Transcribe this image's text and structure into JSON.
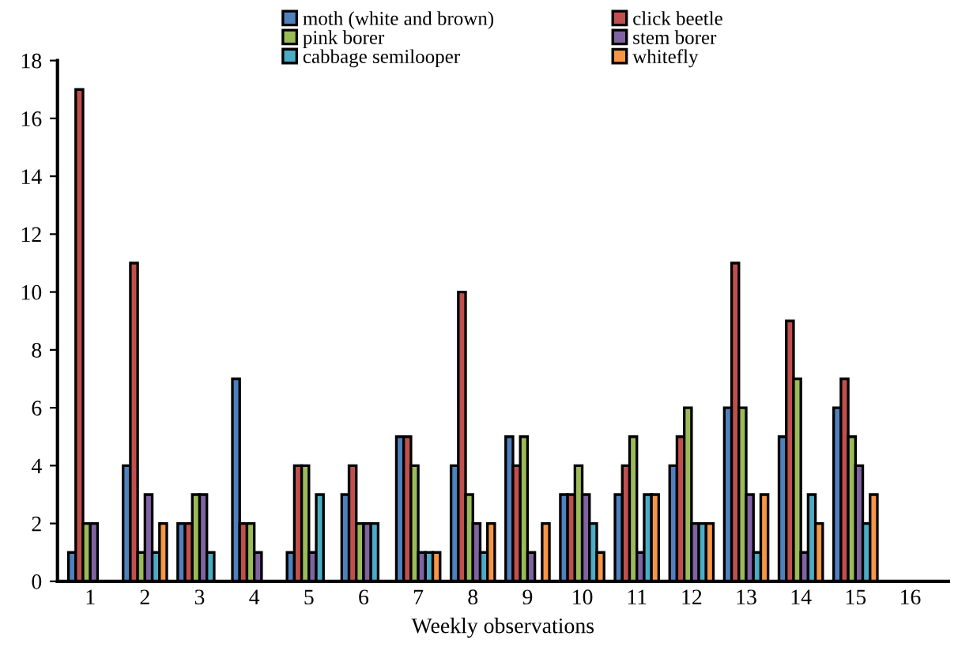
{
  "chart_data": {
    "type": "bar",
    "xlabel": "Weekly observations",
    "categories": [
      "1",
      "2",
      "3",
      "4",
      "5",
      "6",
      "7",
      "8",
      "9",
      "10",
      "11",
      "12",
      "13",
      "14",
      "15",
      "16"
    ],
    "series": [
      {
        "name": "moth (white and brown)",
        "color": "#4f81bd",
        "values": [
          1,
          4,
          2,
          7,
          1,
          3,
          5,
          4,
          5,
          3,
          3,
          4,
          6,
          5,
          6,
          null
        ]
      },
      {
        "name": "click beetle",
        "color": "#c0504d",
        "values": [
          17,
          11,
          2,
          2,
          4,
          4,
          5,
          10,
          4,
          3,
          4,
          5,
          11,
          9,
          7,
          null
        ]
      },
      {
        "name": "pink borer",
        "color": "#9bbb59",
        "values": [
          2,
          1,
          3,
          2,
          4,
          2,
          4,
          3,
          5,
          4,
          5,
          6,
          6,
          7,
          5,
          null
        ]
      },
      {
        "name": "stem borer",
        "color": "#8064a2",
        "values": [
          2,
          3,
          3,
          1,
          1,
          2,
          1,
          2,
          1,
          3,
          1,
          2,
          3,
          1,
          4,
          null
        ]
      },
      {
        "name": "cabbage semilooper",
        "color": "#4bacc6",
        "values": [
          null,
          1,
          1,
          null,
          3,
          2,
          1,
          1,
          null,
          2,
          3,
          2,
          1,
          3,
          2,
          null
        ]
      },
      {
        "name": "whitefly",
        "color": "#f79646",
        "values": [
          null,
          2,
          null,
          null,
          null,
          null,
          1,
          2,
          2,
          1,
          3,
          2,
          3,
          2,
          3,
          null
        ]
      }
    ],
    "ylim": [
      0,
      18
    ],
    "yticks": [
      0,
      2,
      4,
      6,
      8,
      10,
      12,
      14,
      16,
      18
    ],
    "grid": false,
    "legend": "top"
  }
}
